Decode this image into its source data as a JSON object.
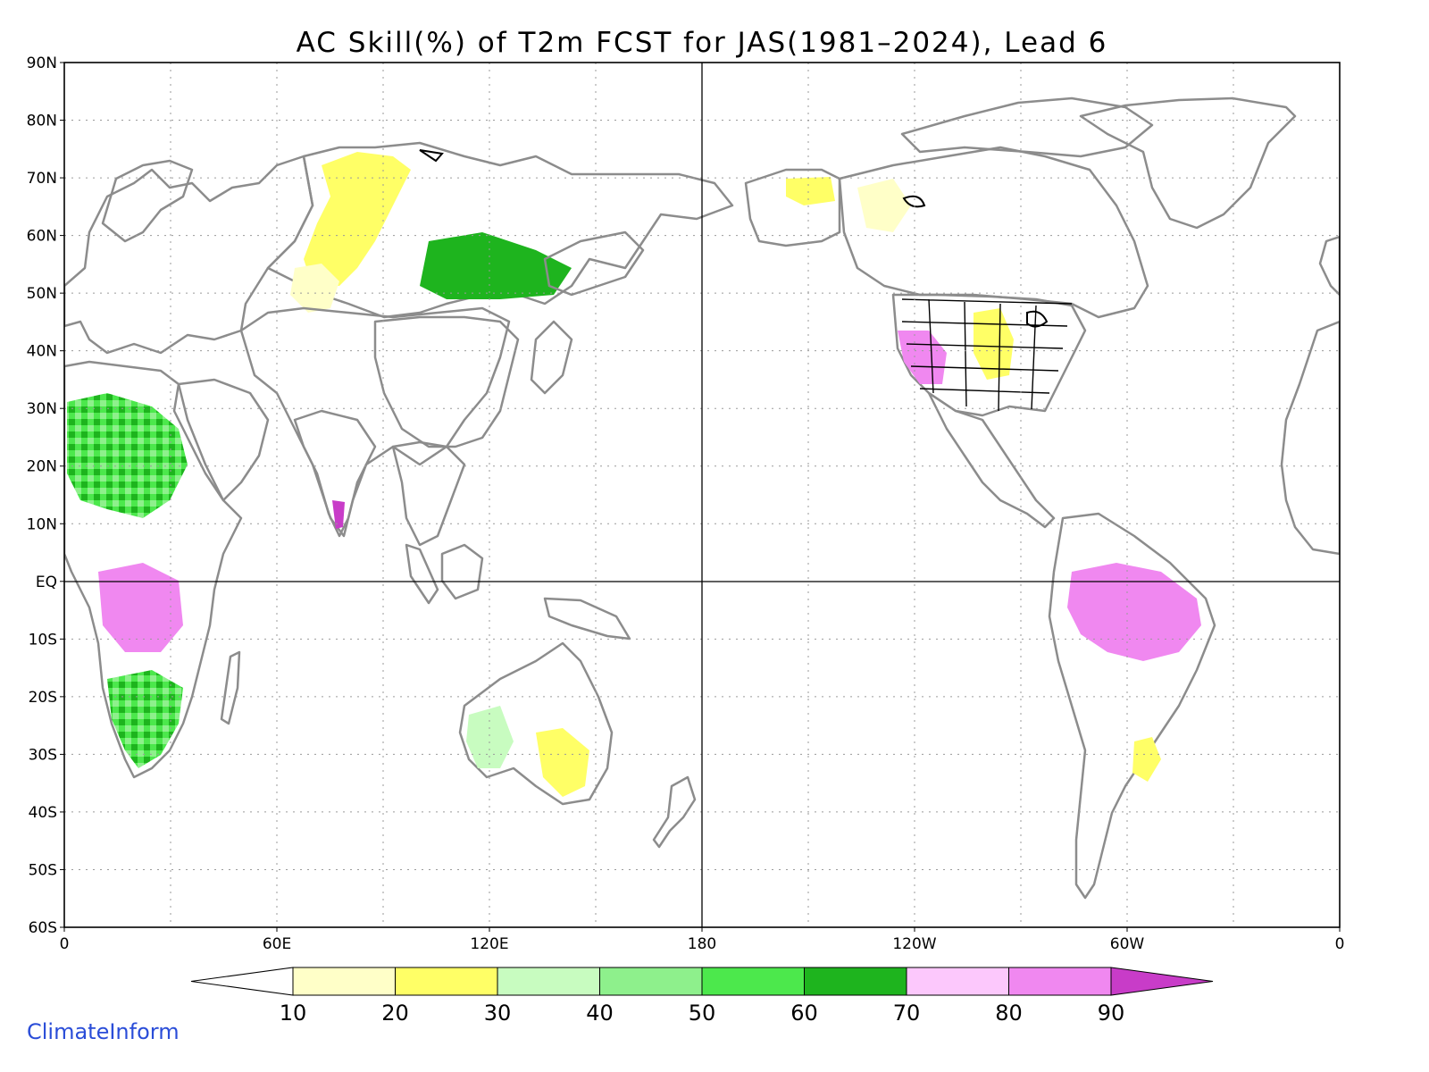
{
  "title": "AC Skill(%) of T2m FCST for JAS(1981–2024), Lead 6",
  "credit": "ClimateInform",
  "lat_labels": [
    "90N",
    "80N",
    "70N",
    "60N",
    "50N",
    "40N",
    "30N",
    "20N",
    "10N",
    "EQ",
    "10S",
    "20S",
    "30S",
    "40S",
    "50S",
    "60S"
  ],
  "lon_labels": [
    "0",
    "60E",
    "120E",
    "180",
    "120W",
    "60W",
    "0"
  ],
  "colorbar": {
    "bins": [
      {
        "color": "#ffffff"
      },
      {
        "color": "#ffffc8",
        "label": "10"
      },
      {
        "color": "#ffff66",
        "label": "20"
      },
      {
        "color": "#c8fcc0",
        "label": "30"
      },
      {
        "color": "#8ef08c",
        "label": "40"
      },
      {
        "color": "#4ce84c",
        "label": "50"
      },
      {
        "color": "#1eb41e",
        "label": "60"
      },
      {
        "color": "#fcc8fc",
        "label": "70"
      },
      {
        "color": "#f088f0",
        "label": "80"
      },
      {
        "color": "#c83cc8",
        "label": "90"
      }
    ]
  },
  "map_extent": {
    "lon": [
      0,
      360
    ],
    "lat": [
      -60,
      90
    ]
  }
}
